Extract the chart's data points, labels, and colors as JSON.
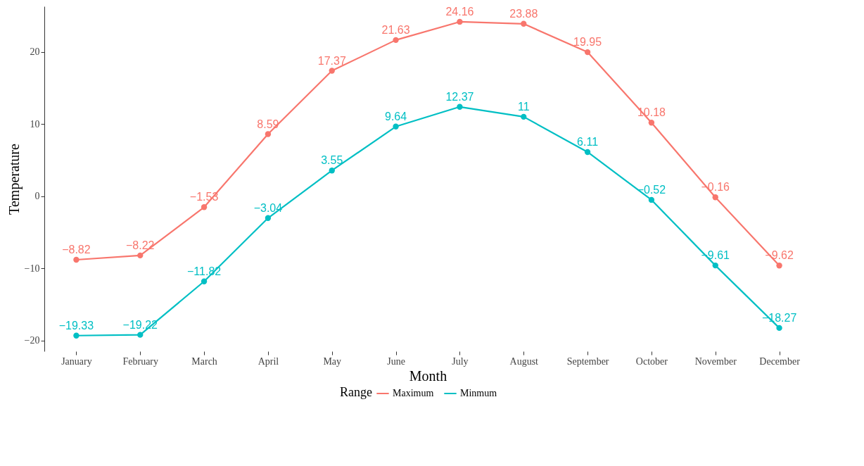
{
  "chart_data": {
    "type": "line",
    "xlabel": "Month",
    "ylabel": "Temperature",
    "legend_title": "Range",
    "categories": [
      "January",
      "February",
      "March",
      "April",
      "May",
      "June",
      "July",
      "August",
      "September",
      "October",
      "November",
      "December"
    ],
    "series": [
      {
        "name": "Maximum",
        "color": "#f8766d",
        "values": [
          -8.82,
          -8.22,
          -1.53,
          8.59,
          17.37,
          21.63,
          24.16,
          23.88,
          19.95,
          10.18,
          -0.16,
          -9.62
        ]
      },
      {
        "name": "Minmum",
        "color": "#00bfc4",
        "values": [
          -19.33,
          -19.22,
          -11.82,
          -3.04,
          3.55,
          9.64,
          12.37,
          11,
          6.11,
          -0.52,
          -9.61,
          -18.27
        ]
      }
    ],
    "ylim": [
      -21.5,
      26.3
    ],
    "yticks": [
      -20,
      -10,
      0,
      10,
      20
    ],
    "grid": false,
    "legend": "bottom",
    "marker": "circle",
    "line_style": "solid",
    "data_labels": true
  }
}
